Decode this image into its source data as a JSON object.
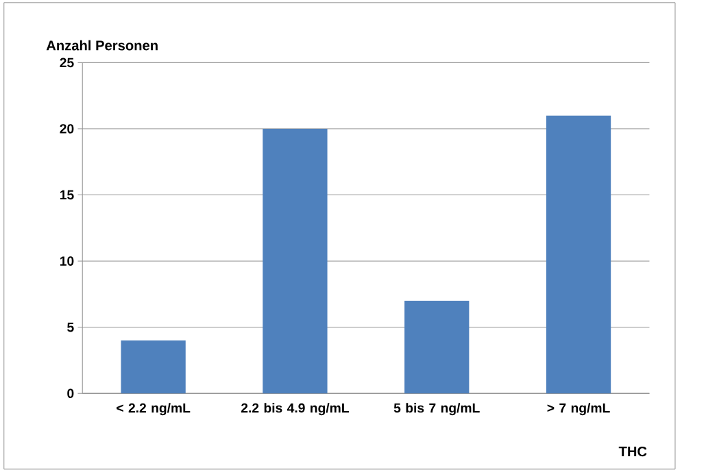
{
  "chart_data": {
    "type": "bar",
    "ylabel": "Anzahl Personen",
    "xlabel": "THC",
    "categories": [
      "< 2.2 ng/mL",
      "2.2 bis 4.9 ng/mL",
      "5 bis 7 ng/mL",
      "> 7 ng/mL"
    ],
    "values": [
      4,
      20,
      7,
      21
    ],
    "color": "#4f81bd",
    "ylim": [
      0,
      25
    ],
    "yticks": [
      0,
      5,
      10,
      15,
      20,
      25
    ],
    "grid": "y"
  }
}
